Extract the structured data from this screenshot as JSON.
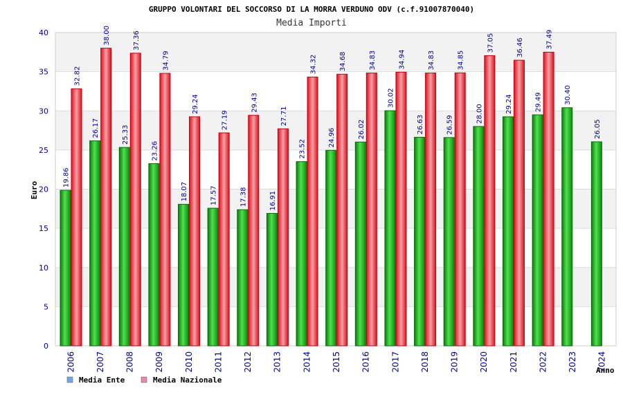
{
  "chart_data": {
    "type": "bar",
    "title": "GRUPPO VOLONTARI DEL SOCCORSO DI LA MORRA VERDUNO ODV (c.f.91007870040)",
    "subtitle": "Media Importi",
    "xlabel": "Anno",
    "ylabel": "Euro",
    "ylim": [
      0,
      40
    ],
    "yticks": [
      0,
      5,
      10,
      15,
      20,
      25,
      30,
      35,
      40
    ],
    "grid": true,
    "legend_position": "bottom-left",
    "categories": [
      "2006",
      "2007",
      "2008",
      "2009",
      "2010",
      "2011",
      "2012",
      "2013",
      "2014",
      "2015",
      "2016",
      "2017",
      "2018",
      "2019",
      "2020",
      "2021",
      "2022",
      "2023",
      "2024"
    ],
    "series": [
      {
        "name": "Media Ente",
        "color": "#1fae1f",
        "legend_color": "#6ea6e8",
        "values": [
          19.86,
          26.17,
          25.33,
          23.26,
          18.07,
          17.57,
          17.38,
          16.91,
          23.52,
          24.96,
          26.02,
          30.02,
          26.63,
          26.59,
          28.0,
          29.24,
          29.49,
          30.4,
          26.05
        ],
        "labels": [
          "19.86",
          "26.17",
          "25.33",
          "23.26",
          "18.07",
          "17.57",
          "17.38",
          "16.91",
          "23.52",
          "24.96",
          "26.02",
          "30.02",
          "26.63",
          "26.59",
          "28.00",
          "29.24",
          "29.49",
          "30.40",
          "26.05"
        ]
      },
      {
        "name": "Media Nazionale",
        "color": "#e8202a",
        "legend_color": "#e88ab0",
        "values": [
          32.82,
          38.0,
          37.36,
          34.79,
          29.24,
          27.19,
          29.43,
          27.71,
          34.32,
          34.68,
          34.83,
          34.94,
          34.83,
          34.85,
          37.05,
          36.46,
          37.49,
          null,
          null
        ],
        "labels": [
          "32.82",
          "38.00",
          "37.36",
          "34.79",
          "29.24",
          "27.19",
          "29.43",
          "27.71",
          "34.32",
          "34.68",
          "34.83",
          "34.94",
          "34.83",
          "34.85",
          "37.05",
          "36.46",
          "37.49",
          null,
          null
        ]
      }
    ]
  }
}
